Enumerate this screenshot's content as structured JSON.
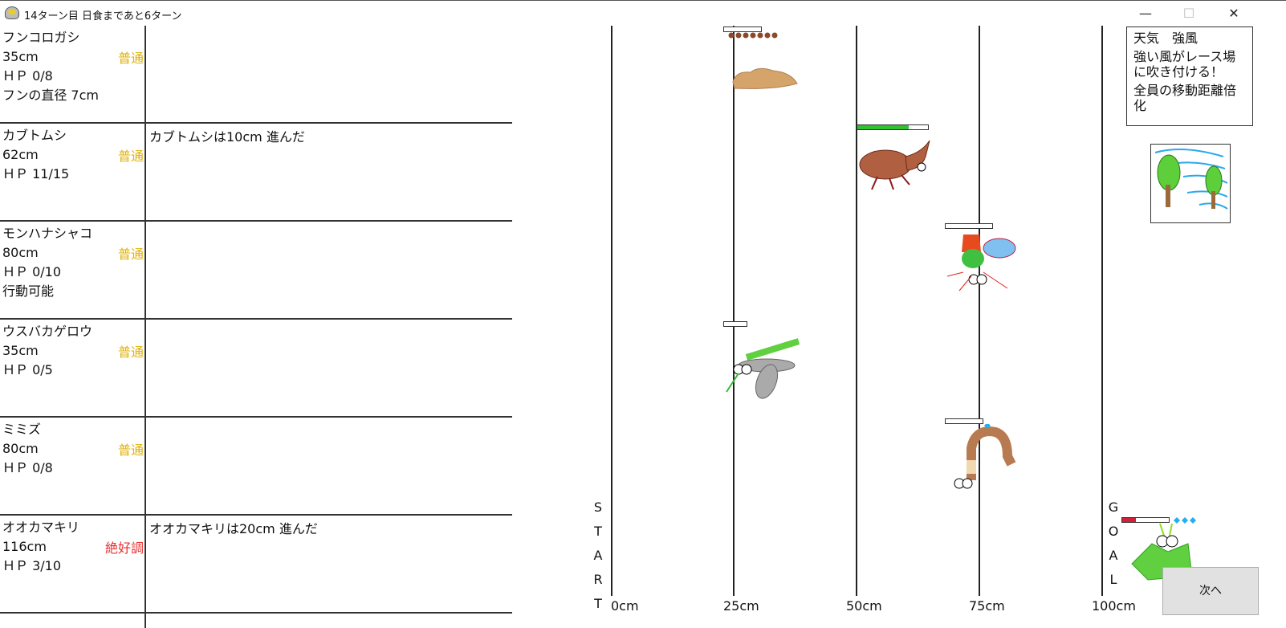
{
  "window": {
    "title": "14ターン目 日食まであと6ターン",
    "minimize": "—",
    "maximize": "☐",
    "close": "✕"
  },
  "racers": [
    {
      "name": "フンコロガシ",
      "distance": "35cm",
      "condition": "普通",
      "condition_color": "#e0b000",
      "hp": "ＨＰ 0/8",
      "extra": "フンの直径 7cm",
      "message": "",
      "hp_fraction": 0
    },
    {
      "name": "カブトムシ",
      "distance": "62cm",
      "condition": "普通",
      "condition_color": "#e0b000",
      "hp": "ＨＰ 11/15",
      "extra": "",
      "message": "カブトムシは10cm 進んだ",
      "hp_fraction": 0.73
    },
    {
      "name": "モンハナシャコ",
      "distance": "80cm",
      "condition": "普通",
      "condition_color": "#e0b000",
      "hp": "ＨＰ 0/10",
      "extra": "行動可能",
      "message": "",
      "hp_fraction": 0
    },
    {
      "name": "ウスバカゲロウ",
      "distance": "35cm",
      "condition": "普通",
      "condition_color": "#e0b000",
      "hp": "ＨＰ 0/5",
      "extra": "",
      "message": "",
      "hp_fraction": 0
    },
    {
      "name": "ミミズ",
      "distance": "80cm",
      "condition": "普通",
      "condition_color": "#e0b000",
      "hp": "ＨＰ 0/8",
      "extra": "",
      "message": "",
      "hp_fraction": 0
    },
    {
      "name": "オオカマキリ",
      "distance": "116cm",
      "condition": "絶好調",
      "condition_color": "#e83030",
      "hp": "ＨＰ 3/10",
      "extra": "",
      "message": "オオカマキリは20cm 進んだ",
      "hp_fraction": 0.3
    }
  ],
  "track": {
    "ticks": [
      "0cm",
      "25cm",
      "50cm",
      "75cm",
      "100cm"
    ],
    "start_letters": [
      "S",
      "T",
      "A",
      "R",
      "T"
    ],
    "goal_letters": [
      "G",
      "O",
      "A",
      "L"
    ]
  },
  "weather": {
    "title": "天気　強風",
    "line1": "強い風がレース場に吹き付ける！",
    "line2": "全員の移動距離倍化",
    "icon": "strong-wind"
  },
  "next_button": "次へ"
}
